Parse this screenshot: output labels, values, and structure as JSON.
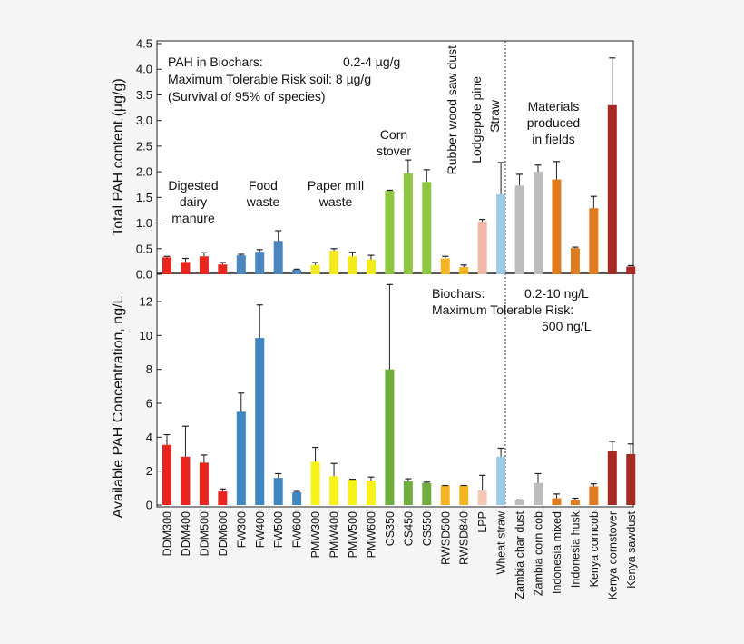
{
  "chart_data": [
    {
      "type": "bar",
      "panel": "top",
      "ylabel": "Total PAH content (µg/g)",
      "ylim": [
        0,
        4.5
      ],
      "yticks": [
        "0.0",
        "0.5",
        "1.0",
        "1.5",
        "2.0",
        "2.5",
        "3.0",
        "3.5",
        "4.0",
        "4.5"
      ],
      "ytick_values": [
        0,
        0.5,
        1,
        1.5,
        2,
        2.5,
        3,
        3.5,
        4,
        4.5
      ],
      "grid": false,
      "info_lines": [
        {
          "label": "PAH in Biochars:",
          "value": "0.2-4 µg/g"
        },
        {
          "label": "Maximum Tolerable Risk soil: 8 µg/g",
          "value": ""
        },
        {
          "label": "(Survival of 95% of species)",
          "value": ""
        }
      ],
      "group_labels": [
        {
          "lines": [
            "Digested",
            "dairy",
            "manure"
          ]
        },
        {
          "lines": [
            "Food",
            "waste"
          ]
        },
        {
          "lines": [
            "Paper mill",
            "waste"
          ]
        },
        {
          "lines": [
            "Corn",
            "stover"
          ]
        },
        {
          "lines": [
            "Rubber wood saw dust"
          ],
          "rotated": true
        },
        {
          "lines": [
            "Lodgepole pine",
            "Straw"
          ],
          "rotated": true
        },
        {
          "lines": [
            "Materials",
            "produced",
            "in fields"
          ]
        }
      ],
      "values": [
        0.33,
        0.24,
        0.35,
        0.19,
        0.37,
        0.44,
        0.65,
        0.09,
        0.18,
        0.46,
        0.35,
        0.29,
        1.63,
        1.97,
        1.8,
        0.31,
        0.14,
        1.03,
        1.56,
        1.73,
        2.0,
        1.85,
        0.51,
        1.29,
        3.3,
        0.15
      ],
      "errors": [
        0.02,
        0.07,
        0.07,
        0.04,
        0.02,
        0.04,
        0.2,
        0.01,
        0.05,
        0.04,
        0.08,
        0.08,
        0.01,
        0.26,
        0.24,
        0.04,
        0.04,
        0.04,
        0.62,
        0.22,
        0.13,
        0.35,
        0.02,
        0.23,
        0.92,
        0.02
      ],
      "colors": [
        "#e8251e",
        "#e8251e",
        "#e8251e",
        "#e8251e",
        "#4a86c0",
        "#4a86c0",
        "#4a86c0",
        "#4a86c0",
        "#f2ea1c",
        "#f2ea1c",
        "#f2ea1c",
        "#f2ea1c",
        "#8dc63f",
        "#8dc63f",
        "#8dc63f",
        "#f7b421",
        "#f7b421",
        "#f2b9a8",
        "#9ecae8",
        "#bdbdbd",
        "#bdbdbd",
        "#e07b1f",
        "#e07b1f",
        "#e07b1f",
        "#a52a24",
        "#a52a24"
      ]
    },
    {
      "type": "bar",
      "panel": "bottom",
      "ylabel": "Available PAH Concentration, ng/L",
      "ylim": [
        0,
        13.5
      ],
      "yticks": [
        "0",
        "2",
        "4",
        "6",
        "8",
        "10",
        "12"
      ],
      "ytick_values": [
        0,
        2,
        4,
        6,
        8,
        10,
        12
      ],
      "grid": false,
      "info_lines": [
        {
          "label": "Biochars:",
          "value": "0.2-10 ng/L"
        },
        {
          "label": "Maximum Tolerable Risk:",
          "value": ""
        },
        {
          "label": "500 ng/L",
          "value": ""
        }
      ],
      "categories": [
        "DDM300",
        "DDM400",
        "DDM500",
        "DDM600",
        "FW300",
        "FW400",
        "FW500",
        "FW600",
        "PMW300",
        "PMW400",
        "PMW500",
        "PMW600",
        "CS350",
        "CS450",
        "CS550",
        "RWSD500",
        "RWSD840",
        "LPP",
        "Wheat straw",
        "Zambia char dust",
        "Zambia corn cob",
        "Indonesia mixed",
        "Indonesia husk",
        "Kenya corncob",
        "Kenya cornstover",
        "Kenya sawdust"
      ],
      "values": [
        3.55,
        2.85,
        2.5,
        0.8,
        5.5,
        9.85,
        1.6,
        0.75,
        2.55,
        1.7,
        1.5,
        1.45,
        8.0,
        1.4,
        1.3,
        1.15,
        1.15,
        0.85,
        2.85,
        0.3,
        1.3,
        0.4,
        0.3,
        1.1,
        3.2,
        3.0
      ],
      "errors": [
        0.6,
        1.8,
        0.45,
        0.15,
        1.1,
        1.95,
        0.25,
        0.05,
        0.85,
        0.75,
        0.02,
        0.2,
        5.0,
        0.15,
        0.05,
        0.0,
        0.0,
        0.9,
        0.5,
        0.0,
        0.55,
        0.25,
        0.1,
        0.15,
        0.55,
        0.6
      ],
      "colors": [
        "#e8251e",
        "#e8251e",
        "#e8251e",
        "#e8251e",
        "#3f87c2",
        "#3f87c2",
        "#3f87c2",
        "#3f87c2",
        "#f7f21c",
        "#f7f21c",
        "#f7f21c",
        "#f7f21c",
        "#6fae3c",
        "#6fae3c",
        "#6fae3c",
        "#f7b421",
        "#f7b421",
        "#f5c7b5",
        "#9ecae8",
        "#bdbdbd",
        "#bdbdbd",
        "#e07b1f",
        "#e07b1f",
        "#e07b1f",
        "#a52a24",
        "#a52a24"
      ]
    }
  ]
}
